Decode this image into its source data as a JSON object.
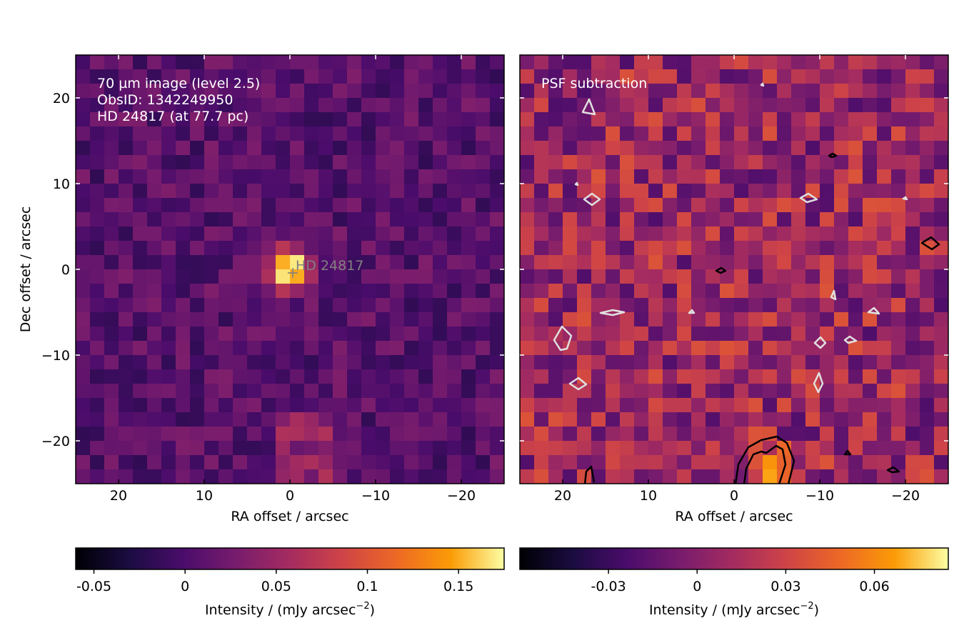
{
  "chart_data": [
    {
      "type": "heatmap",
      "title": "",
      "annotations": [
        "70 µm image (level 2.5)",
        "ObsID: 1342249950",
        "HD 24817 (at 77.7 pc)"
      ],
      "source_label": "HD  24817",
      "source_position": [
        0,
        0
      ],
      "xlabel": "RA offset / arcsec",
      "ylabel": "Dec offset / arcsec",
      "xlim": [
        25,
        -25
      ],
      "ylim": [
        -25,
        25
      ],
      "xticks": [
        20,
        10,
        0,
        -10,
        -20
      ],
      "xtick_labels": [
        "20",
        "10",
        "0",
        "−10",
        "−20"
      ],
      "yticks": [
        20,
        10,
        0,
        -10,
        -20
      ],
      "ytick_labels": [
        "20",
        "10",
        "0",
        "−10",
        "−20"
      ],
      "colormap": "inferno",
      "colorbar": {
        "label": "Intensity / (mJy arcsec",
        "label_exponent": "−2",
        "label_close": ")",
        "range": [
          -0.06,
          0.175
        ],
        "ticks": [
          -0.05,
          0,
          0.05,
          0.1,
          0.15
        ],
        "tick_labels": [
          "-0.05",
          "0",
          "0.05",
          "0.1",
          "0.15"
        ]
      },
      "grid_size": 30,
      "peak": {
        "x": 0,
        "y": 0,
        "value": 0.175
      }
    },
    {
      "type": "heatmap",
      "title": "",
      "annotations": [
        "PSF subtraction"
      ],
      "xlabel": "RA offset / arcsec",
      "ylabel": "",
      "xlim": [
        25,
        -25
      ],
      "ylim": [
        -25,
        25
      ],
      "xticks": [
        20,
        10,
        0,
        -10,
        -20
      ],
      "xtick_labels": [
        "20",
        "10",
        "0",
        "−10",
        "−20"
      ],
      "yticks": [
        20,
        10,
        0,
        -10,
        -20
      ],
      "colormap": "inferno",
      "colorbar": {
        "label": "Intensity / (mJy arcsec",
        "label_exponent": "−2",
        "label_close": ")",
        "range": [
          -0.06,
          0.085
        ],
        "ticks": [
          -0.03,
          0,
          0.03,
          0.06
        ],
        "tick_labels": [
          "-0.03",
          "0",
          "0.03",
          "0.06"
        ]
      },
      "grid_size": 30,
      "contours": "positive levels in black, negative levels in white"
    }
  ],
  "colors": {
    "positive_contour": "#000000",
    "negative_contour": "#e0e0e0",
    "source_marker": "#808080"
  }
}
